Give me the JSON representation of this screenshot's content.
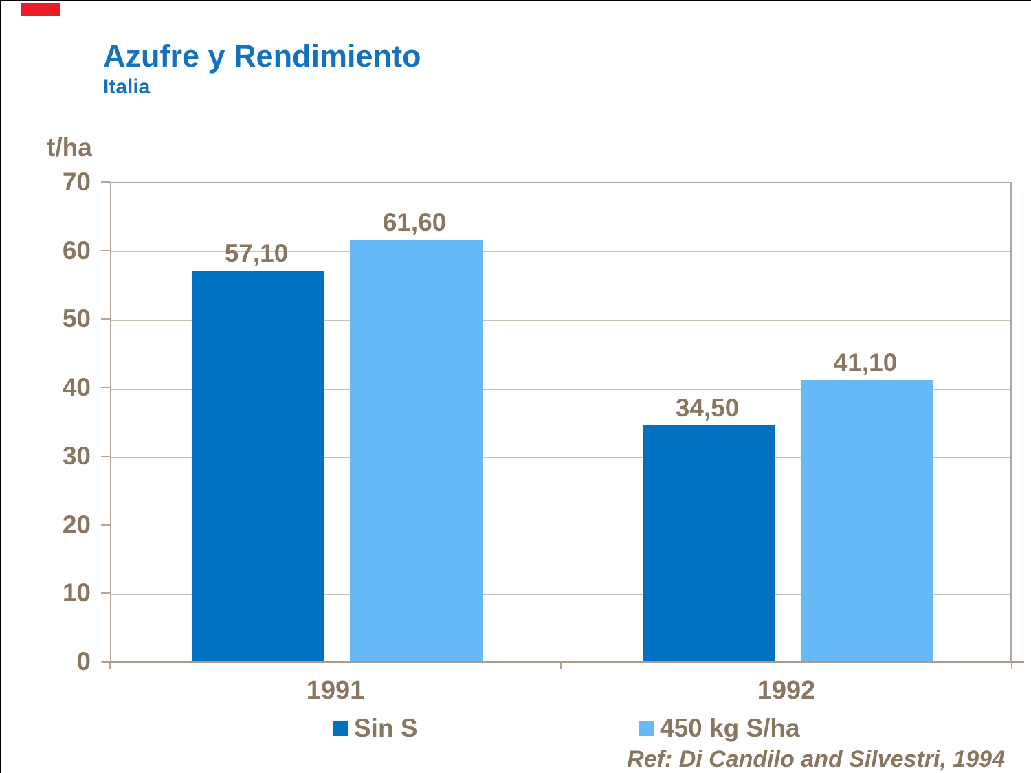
{
  "page": {
    "title": "Azufre y Rendimiento",
    "subtitle": "Italia",
    "unit_label": "t/ha",
    "reference": "Ref: Di Candilo and Silvestri, 1994",
    "colors": {
      "title_blue": "#1272be",
      "text_brown": "#877660",
      "frame_tan": "#b2a79a",
      "gridline_tan": "#c9c1b5",
      "dark_blue_bar": "#0070c0",
      "light_blue_bar": "#66b9f7",
      "corner_red": "#ec1c24"
    }
  },
  "chart_data": {
    "type": "bar",
    "title": "Azufre y Rendimiento",
    "subtitle": "Italia",
    "ylabel": "t/ha",
    "categories": [
      "1991",
      "1992"
    ],
    "series": [
      {
        "name": "Sin S",
        "color": "#0070c0",
        "values": [
          57.1,
          34.5
        ],
        "value_labels": [
          "57,10",
          "34,50"
        ]
      },
      {
        "name": "450 kg S/ha",
        "color": "#66b9f7",
        "values": [
          61.6,
          41.1
        ],
        "value_labels": [
          "61,60",
          "41,10"
        ]
      }
    ],
    "ylim": [
      0,
      70
    ],
    "yticks": [
      0,
      10,
      20,
      30,
      40,
      50,
      60,
      70
    ],
    "grid": true,
    "legend_position": "bottom",
    "annotation": "Ref: Di Candilo and Silvestri, 1994"
  }
}
